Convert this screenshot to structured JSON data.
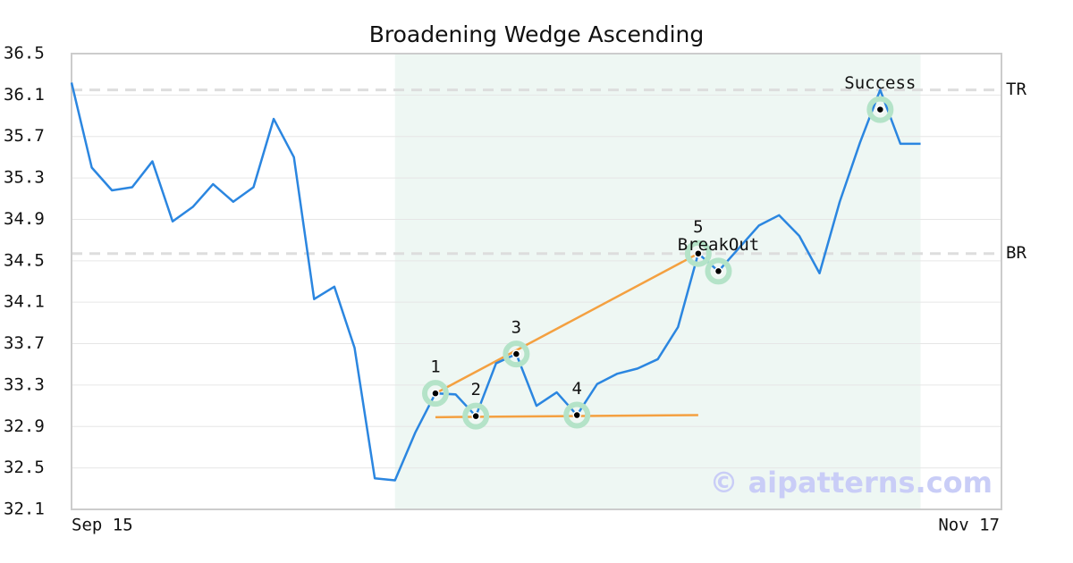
{
  "chart_data": {
    "type": "line",
    "title": "Broadening Wedge Ascending",
    "categories": [
      "Sep 15",
      null,
      null,
      null,
      null,
      null,
      null,
      null,
      null,
      null,
      null,
      null,
      null,
      null,
      null,
      null,
      null,
      null,
      null,
      null,
      null,
      null,
      null,
      null,
      null,
      null,
      null,
      null,
      null,
      null,
      null,
      null,
      null,
      null,
      null,
      null,
      null,
      null,
      null,
      null,
      null,
      null,
      null,
      null,
      null,
      null,
      "Nov 17"
    ],
    "values": [
      36.22,
      35.4,
      35.18,
      35.21,
      35.46,
      34.88,
      35.02,
      35.24,
      35.07,
      35.21,
      35.87,
      35.5,
      34.13,
      34.25,
      33.66,
      32.4,
      32.38,
      32.84,
      33.22,
      33.21,
      33.0,
      33.51,
      33.6,
      33.1,
      33.23,
      33.01,
      33.31,
      33.41,
      33.46,
      33.55,
      33.86,
      34.57,
      34.4,
      34.62,
      34.84,
      34.94,
      34.74,
      34.38,
      35.07,
      35.64,
      36.15,
      35.63,
      35.63,
      null,
      null,
      null,
      null
    ],
    "color": "#2b86e0",
    "ylim": [
      32.1,
      36.5
    ],
    "yticks": [
      32.1,
      32.5,
      32.9,
      33.3,
      33.7,
      34.1,
      34.5,
      34.9,
      35.3,
      35.7,
      36.1,
      36.5
    ],
    "grid": true,
    "pattern_range": [
      16,
      42
    ],
    "trend_lines": [
      {
        "x": [
          18,
          31
        ],
        "values": [
          33.22,
          34.57
        ],
        "color": "#f4a040"
      },
      {
        "x": [
          18,
          31
        ],
        "values": [
          32.99,
          33.01
        ],
        "color": "#f4a040"
      }
    ],
    "reference_lines": [
      {
        "label": "TR",
        "value": 36.15
      },
      {
        "label": "BR",
        "value": 34.57
      }
    ],
    "points": [
      {
        "label": "1",
        "x": 18,
        "value": 33.22
      },
      {
        "label": "2",
        "x": 20,
        "value": 33.0
      },
      {
        "label": "3",
        "x": 22,
        "value": 33.6
      },
      {
        "label": "4",
        "x": 25,
        "value": 33.01
      },
      {
        "label": "5",
        "x": 31,
        "value": 34.57
      },
      {
        "label": "BreakOut",
        "x": 32,
        "value": 34.4
      },
      {
        "label": "Success",
        "x": 40,
        "value": 35.96
      }
    ],
    "watermark": "© aipatterns.com"
  }
}
